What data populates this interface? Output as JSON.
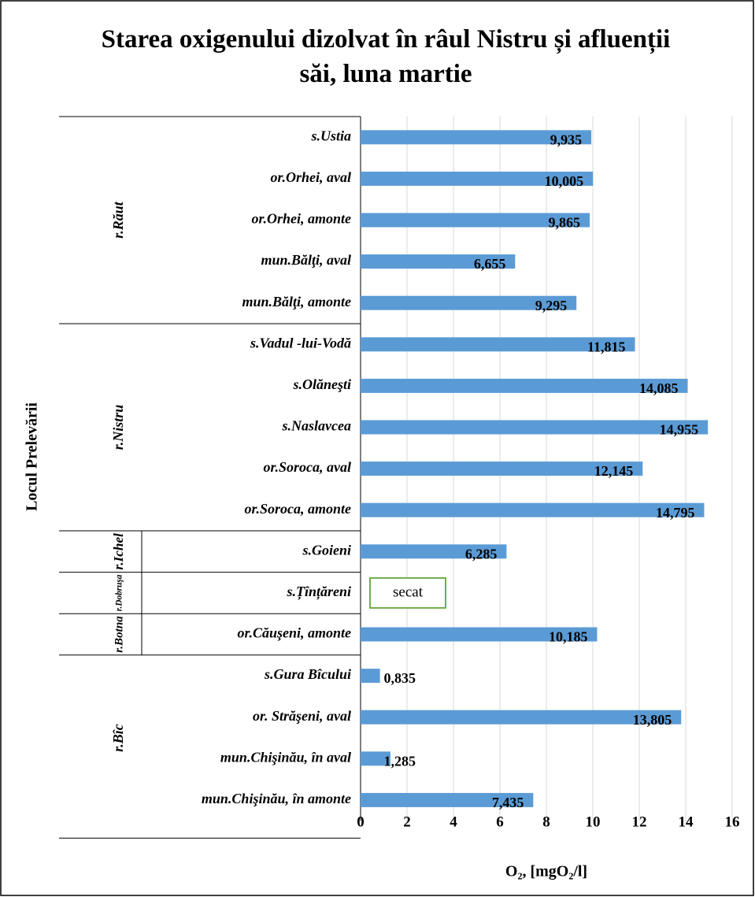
{
  "chart_data": {
    "type": "bar",
    "orientation": "horizontal",
    "title": "Starea oxigenului dizolvat în râul Nistru și afluenții săi, luna martie",
    "y_axis_label": "Locul Prelevării",
    "x_axis_label": "O₂, [mgO₂/l]",
    "color": "#5b9bd5",
    "xlim": [
      0,
      16
    ],
    "xticks": [
      0,
      2,
      4,
      6,
      8,
      10,
      12,
      14,
      16
    ],
    "grid": true,
    "groups": [
      {
        "name": "r.Răut",
        "categories": [
          "s.Ustia",
          "or.Orhei, aval",
          "or.Orhei, amonte",
          "mun.Bălţi, aval",
          "mun.Bălţi, amonte"
        ],
        "values": [
          9.935,
          10.005,
          9.865,
          6.655,
          9.295
        ],
        "value_labels": [
          "9,935",
          "10,005",
          "9,865",
          "6,655",
          "9,295"
        ]
      },
      {
        "name": "r.Nistru",
        "categories": [
          "s.Vadul -lui-Vodă",
          "s.Olăneşti",
          "s.Naslavcea",
          "or.Soroca, aval",
          "or.Soroca, amonte"
        ],
        "values": [
          11.815,
          14.085,
          14.955,
          12.145,
          14.795
        ],
        "value_labels": [
          "11,815",
          "14,085",
          "14,955",
          "12,145",
          "14,795"
        ]
      },
      {
        "name": "r.Ichel",
        "categories": [
          "s.Goieni"
        ],
        "values": [
          6.285
        ],
        "value_labels": [
          "6,285"
        ]
      },
      {
        "name": "r.Dobruşa",
        "categories": [
          "s.Țînțăreni"
        ],
        "values": [
          null
        ],
        "value_labels": [
          null
        ],
        "annotation": "secat"
      },
      {
        "name": "r.Botna",
        "categories": [
          "or.Căuşeni, amonte"
        ],
        "values": [
          10.185
        ],
        "value_labels": [
          "10,185"
        ]
      },
      {
        "name": "r.Bîc",
        "categories": [
          "s.Gura Bîcului",
          "or. Străşeni, aval",
          "mun.Chişinău, în aval",
          "mun.Chişinău, în amonte"
        ],
        "values": [
          0.835,
          13.805,
          1.285,
          7.435
        ],
        "value_labels": [
          "0,835",
          "13,805",
          "1,285",
          "7,435"
        ]
      }
    ]
  }
}
